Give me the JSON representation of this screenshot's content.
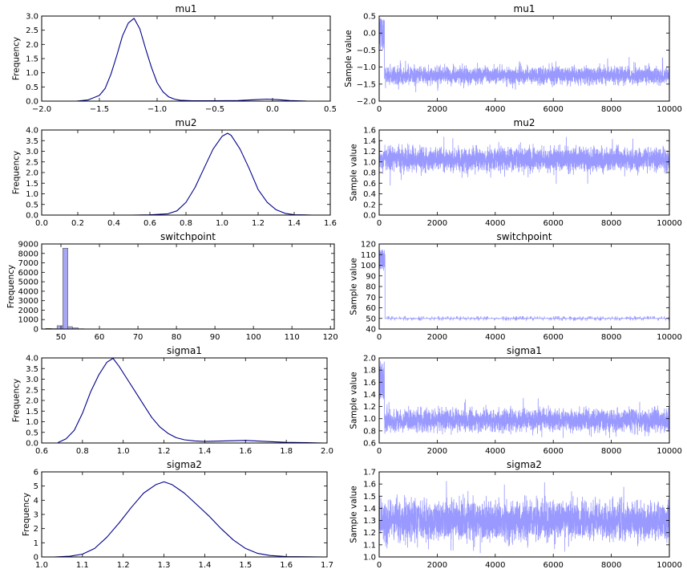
{
  "colors": {
    "density": "#00008b",
    "trace": "#9999ff",
    "hist_fill": "#a6a6f2",
    "hist_edge": "#555555"
  },
  "chart_data": [
    {
      "id": "mu1-density",
      "type": "line",
      "title": "mu1",
      "xlabel": "",
      "ylabel": "Frequency",
      "xlim": [
        -2.0,
        0.5
      ],
      "ylim": [
        0,
        3.0
      ],
      "xticks": [
        -2.0,
        -1.5,
        -1.0,
        -0.5,
        0.0,
        0.5
      ],
      "yticks": [
        0.0,
        0.5,
        1.0,
        1.5,
        2.0,
        2.5,
        3.0
      ],
      "xtick_labels": [
        "−2.0",
        "−1.5",
        "−1.0",
        "−0.5",
        "0.0",
        "0.5"
      ],
      "ytick_labels": [
        "0.0",
        "0.5",
        "1.0",
        "1.5",
        "2.0",
        "2.5",
        "3.0"
      ],
      "x": [
        -1.7,
        -1.6,
        -1.5,
        -1.45,
        -1.4,
        -1.35,
        -1.3,
        -1.25,
        -1.2,
        -1.15,
        -1.1,
        -1.05,
        -1.0,
        -0.95,
        -0.9,
        -0.85,
        -0.8,
        -0.7,
        -0.5,
        -0.3,
        -0.15,
        -0.05,
        0.05,
        0.15,
        0.3
      ],
      "y": [
        0.0,
        0.04,
        0.2,
        0.45,
        0.95,
        1.6,
        2.3,
        2.75,
        2.92,
        2.55,
        1.85,
        1.2,
        0.65,
        0.33,
        0.15,
        0.07,
        0.03,
        0.01,
        0.01,
        0.02,
        0.05,
        0.07,
        0.05,
        0.02,
        0.0
      ]
    },
    {
      "id": "mu1-trace",
      "type": "line",
      "title": "mu1",
      "xlabel": "",
      "ylabel": "Sample value",
      "xlim": [
        0,
        10000
      ],
      "ylim": [
        -2.0,
        0.5
      ],
      "xticks": [
        0,
        2000,
        4000,
        6000,
        8000,
        10000
      ],
      "yticks": [
        -2.0,
        -1.5,
        -1.0,
        -0.5,
        0.0,
        0.5
      ],
      "xtick_labels": [
        "0",
        "2000",
        "4000",
        "6000",
        "8000",
        "10000"
      ],
      "ytick_labels": [
        "−2.0",
        "−1.5",
        "−1.0",
        "−0.5",
        "0.0",
        "0.5"
      ],
      "samples": 10000,
      "burn_in": {
        "end": 180,
        "range": [
          -0.5,
          0.45
        ]
      },
      "typical_range": [
        -1.6,
        -0.9
      ],
      "extreme_range": [
        -1.75,
        -0.65
      ]
    },
    {
      "id": "mu2-density",
      "type": "line",
      "title": "mu2",
      "xlabel": "",
      "ylabel": "Frequency",
      "xlim": [
        0.0,
        1.6
      ],
      "ylim": [
        0,
        4.0
      ],
      "xticks": [
        0.0,
        0.2,
        0.4,
        0.6,
        0.8,
        1.0,
        1.2,
        1.4,
        1.6
      ],
      "yticks": [
        0.0,
        0.5,
        1.0,
        1.5,
        2.0,
        2.5,
        3.0,
        3.5,
        4.0
      ],
      "xtick_labels": [
        "0.0",
        "0.2",
        "0.4",
        "0.6",
        "0.8",
        "1.0",
        "1.2",
        "1.4",
        "1.6"
      ],
      "ytick_labels": [
        "0.0",
        "0.5",
        "1.0",
        "1.5",
        "2.0",
        "2.5",
        "3.0",
        "3.5",
        "4.0"
      ],
      "x": [
        0.5,
        0.6,
        0.7,
        0.75,
        0.8,
        0.85,
        0.9,
        0.95,
        1.0,
        1.03,
        1.05,
        1.1,
        1.15,
        1.2,
        1.25,
        1.3,
        1.35,
        1.4,
        1.5
      ],
      "y": [
        0.0,
        0.01,
        0.06,
        0.2,
        0.6,
        1.3,
        2.2,
        3.1,
        3.7,
        3.85,
        3.75,
        3.1,
        2.2,
        1.2,
        0.6,
        0.25,
        0.08,
        0.02,
        0.0
      ]
    },
    {
      "id": "mu2-trace",
      "type": "line",
      "title": "mu2",
      "xlabel": "",
      "ylabel": "Sample value",
      "xlim": [
        0,
        10000
      ],
      "ylim": [
        0.0,
        1.6
      ],
      "xticks": [
        0,
        2000,
        4000,
        6000,
        8000,
        10000
      ],
      "yticks": [
        0.0,
        0.2,
        0.4,
        0.6,
        0.8,
        1.0,
        1.2,
        1.4,
        1.6
      ],
      "xtick_labels": [
        "0",
        "2000",
        "4000",
        "6000",
        "8000",
        "10000"
      ],
      "ytick_labels": [
        "0.0",
        "0.2",
        "0.4",
        "0.6",
        "0.8",
        "1.0",
        "1.2",
        "1.4",
        "1.6"
      ],
      "samples": 10000,
      "typical_range": [
        0.75,
        1.35
      ],
      "extreme_range": [
        0.55,
        1.5
      ]
    },
    {
      "id": "switchpoint-hist",
      "type": "bar",
      "title": "switchpoint",
      "xlabel": "",
      "ylabel": "Frequency",
      "xlim": [
        45,
        121
      ],
      "ylim": [
        0,
        9000
      ],
      "xticks": [
        50,
        60,
        70,
        80,
        90,
        100,
        110,
        120
      ],
      "yticks": [
        0,
        1000,
        2000,
        3000,
        4000,
        5000,
        6000,
        7000,
        8000,
        9000
      ],
      "xtick_labels": [
        "50",
        "60",
        "70",
        "80",
        "90",
        "100",
        "110",
        "120"
      ],
      "ytick_labels": [
        "0",
        "1000",
        "2000",
        "3000",
        "4000",
        "5000",
        "6000",
        "7000",
        "8000",
        "9000"
      ],
      "bins": [
        {
          "x0": 46.0,
          "x1": 47.5,
          "value": 60
        },
        {
          "x0": 47.5,
          "x1": 49.0,
          "value": 40
        },
        {
          "x0": 49.0,
          "x1": 50.5,
          "value": 350
        },
        {
          "x0": 50.5,
          "x1": 51.8,
          "value": 8550
        },
        {
          "x0": 51.8,
          "x1": 53.0,
          "value": 250
        },
        {
          "x0": 53.0,
          "x1": 54.5,
          "value": 120
        },
        {
          "x0": 54.5,
          "x1": 56.0,
          "value": 30
        }
      ]
    },
    {
      "id": "switchpoint-trace",
      "type": "line",
      "title": "switchpoint",
      "xlabel": "",
      "ylabel": "Sample value",
      "xlim": [
        0,
        10000
      ],
      "ylim": [
        40,
        120
      ],
      "xticks": [
        0,
        2000,
        4000,
        6000,
        8000,
        10000
      ],
      "yticks": [
        40,
        50,
        60,
        70,
        80,
        90,
        100,
        110,
        120
      ],
      "xtick_labels": [
        "0",
        "2000",
        "4000",
        "6000",
        "8000",
        "10000"
      ],
      "ytick_labels": [
        "40",
        "50",
        "60",
        "70",
        "80",
        "90",
        "100",
        "110",
        "120"
      ],
      "samples": 10000,
      "burn_in": {
        "end": 200,
        "range": [
          95,
          115
        ]
      },
      "mode": 50,
      "alternates": [
        48,
        49,
        51,
        52
      ]
    },
    {
      "id": "sigma1-density",
      "type": "line",
      "title": "sigma1",
      "xlabel": "",
      "ylabel": "Frequency",
      "xlim": [
        0.6,
        2.0
      ],
      "ylim": [
        0,
        4.0
      ],
      "xticks": [
        0.6,
        0.8,
        1.0,
        1.2,
        1.4,
        1.6,
        1.8,
        2.0
      ],
      "yticks": [
        0.0,
        0.5,
        1.0,
        1.5,
        2.0,
        2.5,
        3.0,
        3.5,
        4.0
      ],
      "xtick_labels": [
        "0.6",
        "0.8",
        "1.0",
        "1.2",
        "1.4",
        "1.6",
        "1.8",
        "2.0"
      ],
      "ytick_labels": [
        "0.0",
        "0.5",
        "1.0",
        "1.5",
        "2.0",
        "2.5",
        "3.0",
        "3.5",
        "4.0"
      ],
      "x": [
        0.68,
        0.72,
        0.76,
        0.8,
        0.84,
        0.88,
        0.92,
        0.95,
        0.98,
        1.02,
        1.06,
        1.1,
        1.14,
        1.18,
        1.22,
        1.26,
        1.3,
        1.35,
        1.4,
        1.5,
        1.6,
        1.7,
        1.8,
        1.9,
        1.98
      ],
      "y": [
        0.02,
        0.2,
        0.6,
        1.4,
        2.4,
        3.2,
        3.8,
        3.98,
        3.6,
        3.0,
        2.4,
        1.8,
        1.2,
        0.75,
        0.45,
        0.25,
        0.15,
        0.1,
        0.07,
        0.1,
        0.12,
        0.07,
        0.03,
        0.02,
        0.0
      ]
    },
    {
      "id": "sigma1-trace",
      "type": "line",
      "title": "sigma1",
      "xlabel": "",
      "ylabel": "Sample value",
      "xlim": [
        0,
        10000
      ],
      "ylim": [
        0.6,
        2.0
      ],
      "xticks": [
        0,
        2000,
        4000,
        6000,
        8000,
        10000
      ],
      "yticks": [
        0.6,
        0.8,
        1.0,
        1.2,
        1.4,
        1.6,
        1.8,
        2.0
      ],
      "xtick_labels": [
        "0",
        "2000",
        "4000",
        "6000",
        "8000",
        "10000"
      ],
      "ytick_labels": [
        "0.6",
        "0.8",
        "1.0",
        "1.2",
        "1.4",
        "1.6",
        "1.8",
        "2.0"
      ],
      "samples": 10000,
      "burn_in": {
        "end": 180,
        "range": [
          1.3,
          1.95
        ]
      },
      "typical_range": [
        0.72,
        1.22
      ],
      "extreme_range": [
        0.68,
        1.35
      ]
    },
    {
      "id": "sigma2-density",
      "type": "line",
      "title": "sigma2",
      "xlabel": "",
      "ylabel": "Frequency",
      "xlim": [
        1.0,
        1.7
      ],
      "ylim": [
        0,
        6
      ],
      "xticks": [
        1.0,
        1.1,
        1.2,
        1.3,
        1.4,
        1.5,
        1.6,
        1.7
      ],
      "yticks": [
        0,
        1,
        2,
        3,
        4,
        5,
        6
      ],
      "xtick_labels": [
        "1.0",
        "1.1",
        "1.2",
        "1.3",
        "1.4",
        "1.5",
        "1.6",
        "1.7"
      ],
      "ytick_labels": [
        "0",
        "1",
        "2",
        "3",
        "4",
        "5",
        "6"
      ],
      "x": [
        1.03,
        1.07,
        1.1,
        1.13,
        1.16,
        1.19,
        1.22,
        1.25,
        1.28,
        1.3,
        1.32,
        1.35,
        1.38,
        1.41,
        1.44,
        1.47,
        1.5,
        1.53,
        1.56,
        1.6,
        1.65,
        1.69
      ],
      "y": [
        0.0,
        0.05,
        0.2,
        0.6,
        1.4,
        2.4,
        3.5,
        4.5,
        5.1,
        5.3,
        5.1,
        4.5,
        3.7,
        2.9,
        2.0,
        1.2,
        0.6,
        0.25,
        0.1,
        0.03,
        0.01,
        0.0
      ]
    },
    {
      "id": "sigma2-trace",
      "type": "line",
      "title": "sigma2",
      "xlabel": "",
      "ylabel": "Sample value",
      "xlim": [
        0,
        10000
      ],
      "ylim": [
        1.0,
        1.7
      ],
      "xticks": [
        0,
        2000,
        4000,
        6000,
        8000,
        10000
      ],
      "yticks": [
        1.0,
        1.1,
        1.2,
        1.3,
        1.4,
        1.5,
        1.6,
        1.7
      ],
      "xtick_labels": [
        "0",
        "2000",
        "4000",
        "6000",
        "8000",
        "10000"
      ],
      "ytick_labels": [
        "1.0",
        "1.1",
        "1.2",
        "1.3",
        "1.4",
        "1.5",
        "1.6",
        "1.7"
      ],
      "samples": 10000,
      "typical_range": [
        1.08,
        1.52
      ],
      "extreme_range": [
        1.03,
        1.66
      ]
    }
  ]
}
